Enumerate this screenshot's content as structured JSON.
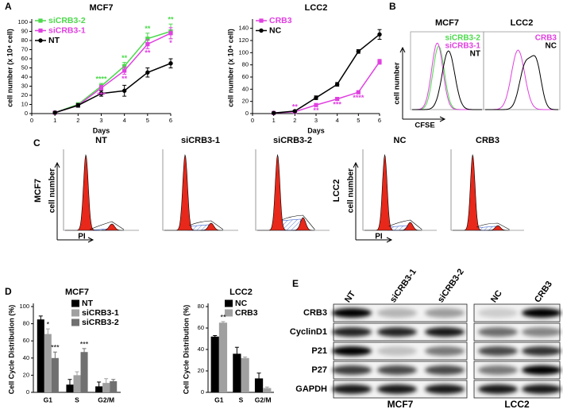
{
  "panel_labels": [
    "A",
    "B",
    "C",
    "D",
    "E"
  ],
  "chart_data": [
    {
      "type": "line",
      "title": "MCF7",
      "xlabel": "Days",
      "ylabel": "cell number (x 10⁴ cell)",
      "x": [
        1,
        2,
        3,
        4,
        5,
        6
      ],
      "xlim": [
        0,
        6
      ],
      "xticks": [
        0,
        1,
        2,
        3,
        4,
        5,
        6
      ],
      "ylim": [
        0,
        100
      ],
      "yticks": [
        0,
        10,
        20,
        30,
        40,
        50,
        60,
        70,
        80,
        90,
        100
      ],
      "legend": "upper left",
      "series": [
        {
          "name": "siCRB3-2",
          "color": "#4cd94c",
          "marker": "square",
          "values": [
            1,
            10,
            30,
            52,
            82,
            90
          ],
          "errors": [
            1,
            2,
            3,
            4,
            6,
            8
          ]
        },
        {
          "name": "siCRB3-1",
          "color": "#e040e0",
          "marker": "square",
          "values": [
            1,
            9,
            28,
            47,
            76,
            88
          ],
          "errors": [
            1,
            2,
            3,
            4,
            5,
            6
          ]
        },
        {
          "name": "NT",
          "color": "#000000",
          "marker": "circle",
          "values": [
            1,
            9,
            22,
            25,
            45,
            55
          ],
          "errors": [
            1,
            2,
            3,
            6,
            5,
            5
          ]
        }
      ],
      "annotations": [
        {
          "series": 0,
          "point": 2,
          "text": "****",
          "position": "above"
        },
        {
          "series": 0,
          "point": 3,
          "text": "**",
          "position": "above"
        },
        {
          "series": 0,
          "point": 4,
          "text": "**",
          "position": "above"
        },
        {
          "series": 0,
          "point": 5,
          "text": "**",
          "position": "above"
        },
        {
          "series": 1,
          "point": 2,
          "text": "***",
          "position": "below"
        },
        {
          "series": 1,
          "point": 3,
          "text": "**",
          "position": "below"
        },
        {
          "series": 1,
          "point": 4,
          "text": "**",
          "position": "below"
        },
        {
          "series": 1,
          "point": 5,
          "text": "*",
          "position": "below"
        }
      ]
    },
    {
      "type": "line",
      "title": "LCC2",
      "xlabel": "Days",
      "ylabel": "cell number (x 10⁴ cell)",
      "x": [
        1,
        2,
        3,
        4,
        5,
        6
      ],
      "xlim": [
        0,
        6
      ],
      "xticks": [
        0,
        1,
        2,
        3,
        4,
        5,
        6
      ],
      "ylim": [
        0,
        150
      ],
      "yticks": [
        0,
        20,
        40,
        60,
        80,
        100,
        120,
        140
      ],
      "legend": "upper left",
      "series": [
        {
          "name": "CRB3",
          "color": "#e040e0",
          "marker": "square",
          "values": [
            1,
            3,
            14,
            24,
            35,
            85
          ],
          "errors": [
            1,
            1,
            2,
            2,
            2,
            4
          ]
        },
        {
          "name": "NC",
          "color": "#000000",
          "marker": "circle",
          "values": [
            1,
            4,
            26,
            48,
            102,
            130
          ],
          "errors": [
            1,
            1,
            3,
            3,
            3,
            8
          ]
        }
      ],
      "annotations": [
        {
          "series": 0,
          "point": 1,
          "text": "**",
          "position": "above"
        },
        {
          "series": 0,
          "point": 2,
          "text": "**",
          "position": "below"
        },
        {
          "series": 0,
          "point": 3,
          "text": "***",
          "position": "below"
        },
        {
          "series": 0,
          "point": 4,
          "text": "****",
          "position": "below"
        }
      ]
    },
    {
      "type": "bar",
      "title": "MCF7",
      "ylabel": "Cell Cycle Distribution (%)",
      "categories": [
        "G1",
        "S",
        "G2/M"
      ],
      "ylim": [
        0,
        100
      ],
      "yticks": [
        0,
        20,
        40,
        60,
        80,
        100
      ],
      "legend": "upper right",
      "series": [
        {
          "name": "NT",
          "color": "#000000",
          "values": [
            85,
            9,
            7
          ],
          "errors": [
            4,
            6,
            5
          ]
        },
        {
          "name": "siCRB3-1",
          "color": "#a0a0a0",
          "values": [
            68,
            20,
            11
          ],
          "errors": [
            6,
            4,
            5
          ]
        },
        {
          "name": "siCRB3-2",
          "color": "#707070",
          "values": [
            40,
            47,
            13
          ],
          "errors": [
            7,
            4,
            2
          ]
        }
      ],
      "annotations": [
        {
          "category": 0,
          "series": 1,
          "text": "*"
        },
        {
          "category": 0,
          "series": 2,
          "text": "***"
        },
        {
          "category": 1,
          "series": 2,
          "text": "***"
        }
      ]
    },
    {
      "type": "bar",
      "title": "LCC2",
      "ylabel": "Cell Cycle Distribution (%)",
      "categories": [
        "G1",
        "S",
        "G2/M"
      ],
      "ylim": [
        0,
        80
      ],
      "yticks": [
        0,
        20,
        40,
        60,
        80
      ],
      "legend": "upper right",
      "series": [
        {
          "name": "NC",
          "color": "#000000",
          "values": [
            52,
            36,
            13
          ],
          "errors": [
            1,
            6,
            5
          ]
        },
        {
          "name": "CRB3",
          "color": "#a0a0a0",
          "values": [
            65,
            32,
            4
          ],
          "errors": [
            1,
            1,
            1
          ]
        }
      ],
      "annotations": [
        {
          "category": 0,
          "series": 1,
          "text": "**"
        }
      ]
    }
  ],
  "flow_b": {
    "ylabel": "cell number",
    "xlabel": "CFSE",
    "panels": [
      {
        "title": "MCF7",
        "labels": [
          {
            "text": "siCRB3-2",
            "color": "#4cd94c"
          },
          {
            "text": "siCRB3-1",
            "color": "#e040e0"
          },
          {
            "text": "NT",
            "color": "#000000"
          }
        ]
      },
      {
        "title": "LCC2",
        "labels": [
          {
            "text": "CRB3",
            "color": "#e040e0"
          },
          {
            "text": "NC",
            "color": "#000000"
          }
        ]
      }
    ]
  },
  "flow_c": {
    "ylabel": "cell number",
    "xlabel": "PI",
    "groups": [
      {
        "label": "MCF7",
        "plots": [
          "NT",
          "siCRB3-1",
          "siCRB3-2"
        ]
      },
      {
        "label": "LCC2",
        "plots": [
          "NC",
          "CRB3"
        ]
      }
    ]
  },
  "western": {
    "proteins": [
      "CRB3",
      "CyclinD1",
      "P21",
      "P27",
      "GAPDH"
    ],
    "groups": [
      {
        "label": "MCF7",
        "lanes": [
          "NT",
          "siCRB3-1",
          "siCRB3-2"
        ]
      },
      {
        "label": "LCC2",
        "lanes": [
          "NC",
          "CRB3"
        ]
      }
    ]
  }
}
